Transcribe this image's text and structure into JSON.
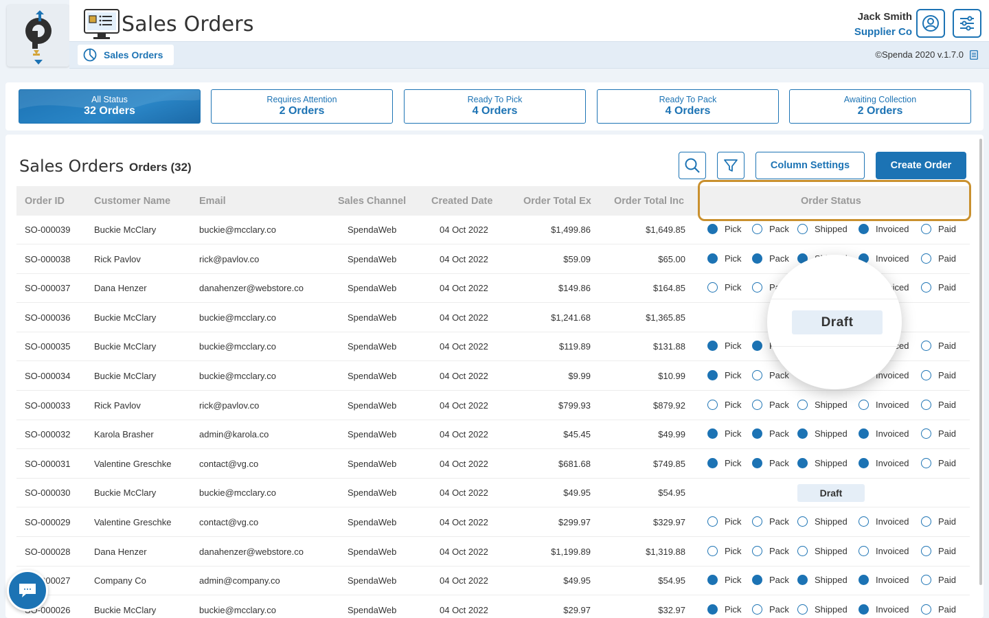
{
  "header": {
    "app_title": "Sales Orders",
    "user_name": "Jack Smith",
    "company": "Supplier Co",
    "subtab_label": "Sales Orders",
    "version": "©Spenda 2020 v.1.7.0"
  },
  "status_cards": [
    {
      "title": "All Status",
      "count": "32 Orders",
      "active": true
    },
    {
      "title": "Requires Attention",
      "count": "2 Orders"
    },
    {
      "title": "Ready To Pick",
      "count": "4 Orders"
    },
    {
      "title": "Ready To Pack",
      "count": "4 Orders"
    },
    {
      "title": "Awaiting Collection",
      "count": "2 Orders"
    }
  ],
  "main": {
    "title": "Sales Orders",
    "count": "Orders (32)",
    "column_settings": "Column Settings",
    "create_order": "Create Order"
  },
  "columns": [
    "Order ID",
    "Customer Name",
    "Email",
    "Sales Channel",
    "Created Date",
    "Order Total Ex",
    "Order Total Inc",
    "Order Status"
  ],
  "status_labels": [
    "Pick",
    "Pack",
    "Shipped",
    "Invoiced",
    "Paid"
  ],
  "draft_label": "Draft",
  "rows": [
    {
      "id": "SO-000039",
      "customer": "Buckie McClary",
      "email": "buckie@mcclary.co",
      "channel": "SpendaWeb",
      "date": "04 Oct 2022",
      "ex": "$1,499.86",
      "inc": "$1,649.85",
      "status": [
        1,
        0,
        0,
        1,
        0
      ]
    },
    {
      "id": "SO-000038",
      "customer": "Rick Pavlov",
      "email": "rick@pavlov.co",
      "channel": "SpendaWeb",
      "date": "04 Oct 2022",
      "ex": "$59.09",
      "inc": "$65.00",
      "status": [
        1,
        1,
        1,
        1,
        0
      ]
    },
    {
      "id": "SO-000037",
      "customer": "Dana Henzer",
      "email": "danahenzer@webstore.co",
      "channel": "SpendaWeb",
      "date": "04 Oct 2022",
      "ex": "$149.86",
      "inc": "$164.85",
      "status": [
        0,
        0,
        0,
        0,
        0
      ]
    },
    {
      "id": "SO-000036",
      "customer": "Buckie McClary",
      "email": "buckie@mcclary.co",
      "channel": "SpendaWeb",
      "date": "04 Oct 2022",
      "ex": "$1,241.68",
      "inc": "$1,365.85",
      "draft": true
    },
    {
      "id": "SO-000035",
      "customer": "Buckie McClary",
      "email": "buckie@mcclary.co",
      "channel": "SpendaWeb",
      "date": "04 Oct 2022",
      "ex": "$119.89",
      "inc": "$131.88",
      "status": [
        1,
        1,
        1,
        1,
        0
      ]
    },
    {
      "id": "SO-000034",
      "customer": "Buckie McClary",
      "email": "buckie@mcclary.co",
      "channel": "SpendaWeb",
      "date": "04 Oct 2022",
      "ex": "$9.99",
      "inc": "$10.99",
      "status": [
        1,
        0,
        0,
        0,
        0
      ]
    },
    {
      "id": "SO-000033",
      "customer": "Rick Pavlov",
      "email": "rick@pavlov.co",
      "channel": "SpendaWeb",
      "date": "04 Oct 2022",
      "ex": "$799.93",
      "inc": "$879.92",
      "status": [
        0,
        0,
        0,
        0,
        0
      ]
    },
    {
      "id": "SO-000032",
      "customer": "Karola Brasher",
      "email": "admin@karola.co",
      "channel": "SpendaWeb",
      "date": "04 Oct 2022",
      "ex": "$45.45",
      "inc": "$49.99",
      "status": [
        1,
        1,
        1,
        1,
        0
      ]
    },
    {
      "id": "SO-000031",
      "customer": "Valentine Greschke",
      "email": "contact@vg.co",
      "channel": "SpendaWeb",
      "date": "04 Oct 2022",
      "ex": "$681.68",
      "inc": "$749.85",
      "status": [
        1,
        1,
        1,
        1,
        0
      ]
    },
    {
      "id": "SO-000030",
      "customer": "Buckie McClary",
      "email": "buckie@mcclary.co",
      "channel": "SpendaWeb",
      "date": "04 Oct 2022",
      "ex": "$49.95",
      "inc": "$54.95",
      "draft": true
    },
    {
      "id": "SO-000029",
      "customer": "Valentine Greschke",
      "email": "contact@vg.co",
      "channel": "SpendaWeb",
      "date": "04 Oct 2022",
      "ex": "$299.97",
      "inc": "$329.97",
      "status": [
        0,
        0,
        0,
        0,
        0
      ]
    },
    {
      "id": "SO-000028",
      "customer": "Dana Henzer",
      "email": "danahenzer@webstore.co",
      "channel": "SpendaWeb",
      "date": "04 Oct 2022",
      "ex": "$1,199.89",
      "inc": "$1,319.88",
      "status": [
        0,
        0,
        0,
        0,
        0
      ]
    },
    {
      "id": "SO-000027",
      "customer": "Company Co",
      "email": "admin@company.co",
      "channel": "SpendaWeb",
      "date": "04 Oct 2022",
      "ex": "$49.95",
      "inc": "$54.95",
      "status": [
        1,
        1,
        1,
        1,
        0
      ]
    },
    {
      "id": "SO-000026",
      "customer": "Buckie McClary",
      "email": "buckie@mcclary.co",
      "channel": "SpendaWeb",
      "date": "04 Oct 2022",
      "ex": "$29.97",
      "inc": "$32.97",
      "status": [
        1,
        0,
        0,
        1,
        0
      ]
    }
  ],
  "colors": {
    "accent": "#1c73b4",
    "highlight": "#c9902e",
    "draft_bg": "#e5eef7"
  }
}
